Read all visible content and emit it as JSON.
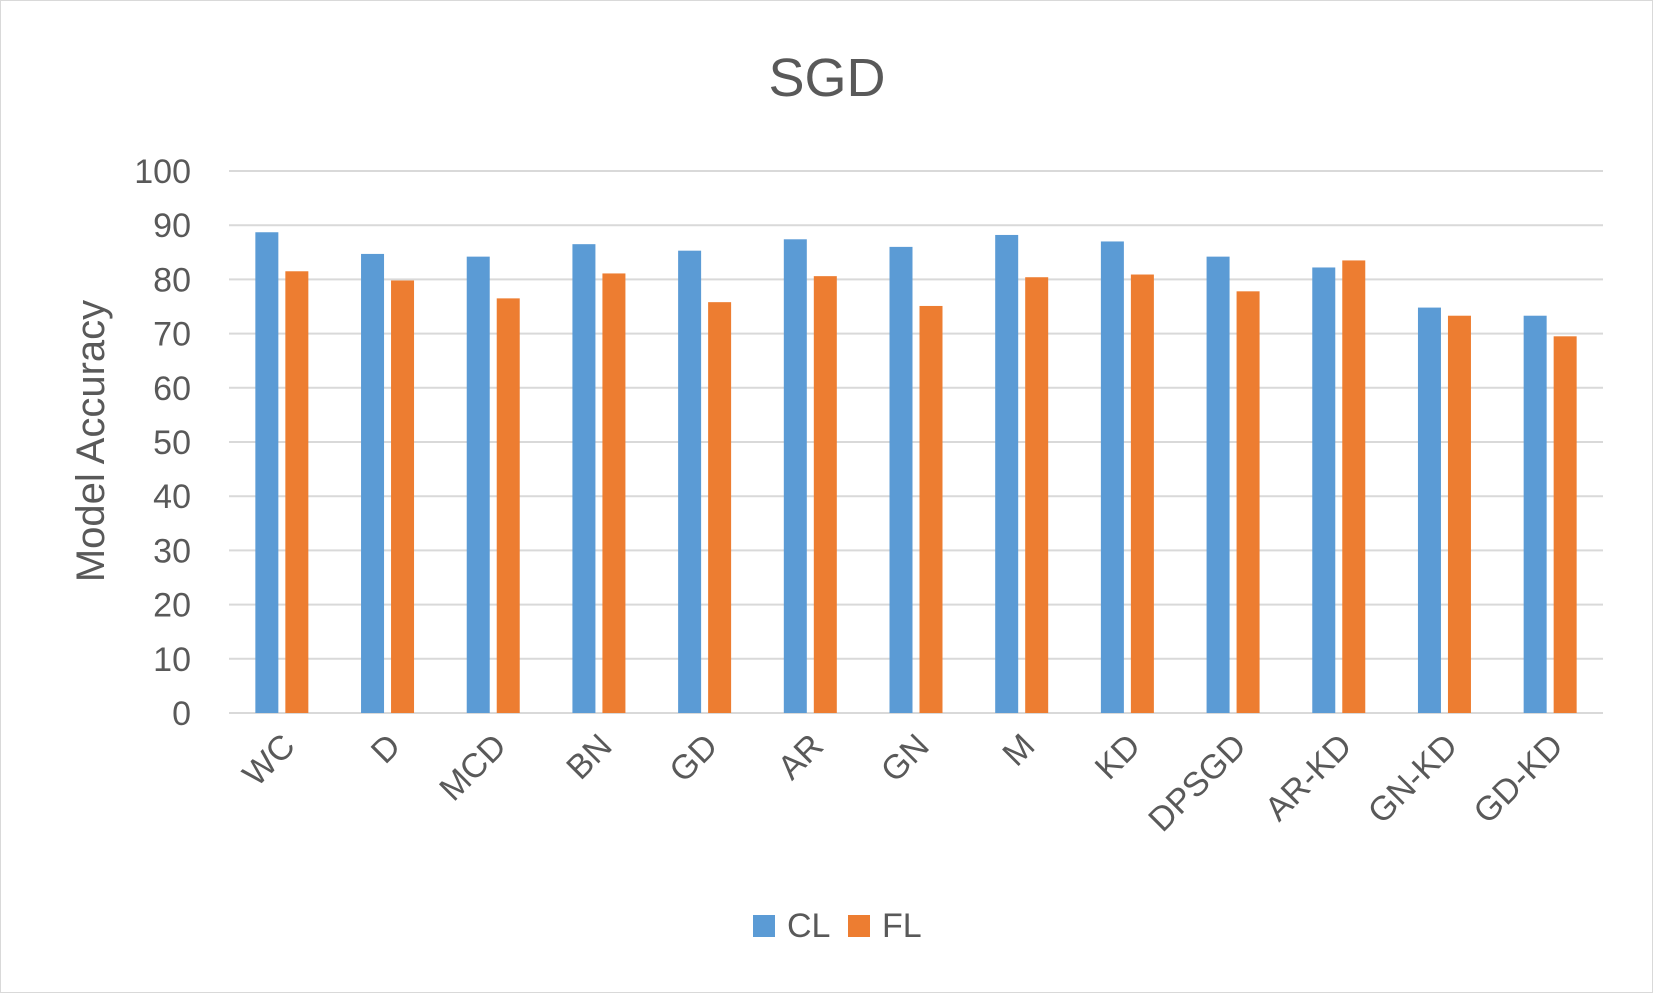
{
  "chart_data": {
    "type": "bar",
    "title": "SGD",
    "xlabel": "",
    "ylabel": "Model Accuracy",
    "ylim": [
      0,
      100
    ],
    "yticks": [
      0,
      10,
      20,
      30,
      40,
      50,
      60,
      70,
      80,
      90,
      100
    ],
    "grid": true,
    "legend_position": "bottom",
    "categories": [
      "WC",
      "D",
      "MCD",
      "BN",
      "GD",
      "AR",
      "GN",
      "M",
      "KD",
      "DPSGD",
      "AR-KD",
      "GN-KD",
      "GD-KD"
    ],
    "series": [
      {
        "name": "CL",
        "color": "#5b9bd5",
        "values": [
          88.7,
          84.7,
          84.2,
          86.5,
          85.3,
          87.4,
          86.0,
          88.2,
          87.0,
          84.2,
          82.2,
          74.8,
          73.3
        ]
      },
      {
        "name": "FL",
        "color": "#ed7d31",
        "values": [
          81.5,
          79.8,
          76.5,
          81.1,
          75.8,
          80.6,
          75.1,
          80.4,
          80.9,
          77.8,
          83.5,
          73.3,
          69.5
        ]
      }
    ],
    "colors": {
      "grid": "#d9d9d9",
      "text": "#595959"
    }
  }
}
